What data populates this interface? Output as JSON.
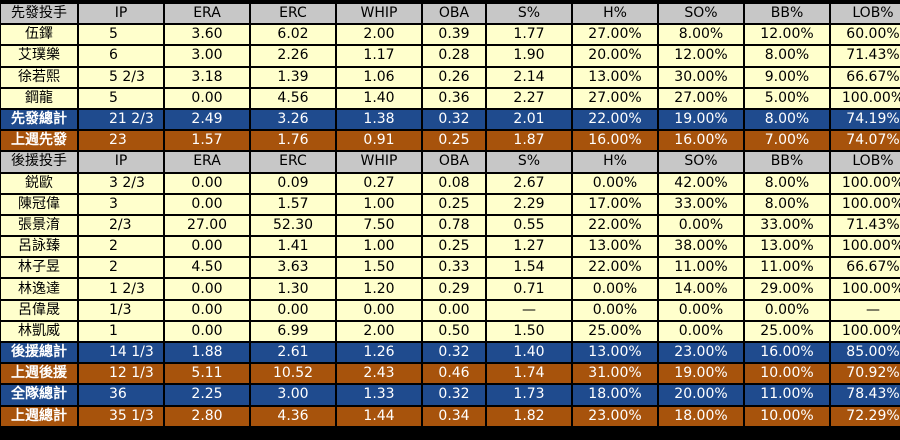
{
  "columns": [
    "IP",
    "ERA",
    "ERC",
    "WHIP",
    "OBA",
    "S%",
    "H%",
    "SO%",
    "BB%",
    "LOB%"
  ],
  "starters": {
    "header": "先發投手",
    "rows": [
      {
        "name": "伍鐸",
        "ip": "5",
        "era": "3.60",
        "erc": "6.02",
        "whip": "2.00",
        "oba": "0.39",
        "s": "1.77",
        "h": "27.00%",
        "so": "8.00%",
        "bb": "12.00%",
        "lob": "60.00%"
      },
      {
        "name": "艾璞樂",
        "ip": "6",
        "era": "3.00",
        "erc": "2.26",
        "whip": "1.17",
        "oba": "0.28",
        "s": "1.90",
        "h": "20.00%",
        "so": "12.00%",
        "bb": "8.00%",
        "lob": "71.43%"
      },
      {
        "name": "徐若熙",
        "ip": "5 2/3",
        "era": "3.18",
        "erc": "1.39",
        "whip": "1.06",
        "oba": "0.26",
        "s": "2.14",
        "h": "13.00%",
        "so": "30.00%",
        "bb": "9.00%",
        "lob": "66.67%"
      },
      {
        "name": "鋼龍",
        "ip": "5",
        "era": "0.00",
        "erc": "4.56",
        "whip": "1.40",
        "oba": "0.36",
        "s": "2.27",
        "h": "27.00%",
        "so": "27.00%",
        "bb": "5.00%",
        "lob": "100.00%"
      }
    ],
    "total": {
      "name": "先發總計",
      "ip": "21 2/3",
      "era": "2.49",
      "erc": "3.26",
      "whip": "1.38",
      "oba": "0.32",
      "s": "2.01",
      "h": "22.00%",
      "so": "19.00%",
      "bb": "8.00%",
      "lob": "74.19%"
    },
    "last_week": {
      "name": "上週先發",
      "ip": "23",
      "era": "1.57",
      "erc": "1.76",
      "whip": "0.91",
      "oba": "0.25",
      "s": "1.87",
      "h": "16.00%",
      "so": "16.00%",
      "bb": "7.00%",
      "lob": "74.07%"
    }
  },
  "relievers": {
    "header": "後援投手",
    "rows": [
      {
        "name": "鋭歐",
        "ip": "3 2/3",
        "era": "0.00",
        "erc": "0.09",
        "whip": "0.27",
        "oba": "0.08",
        "s": "2.67",
        "h": "0.00%",
        "so": "42.00%",
        "bb": "8.00%",
        "lob": "100.00%"
      },
      {
        "name": "陳冠偉",
        "ip": "3",
        "era": "0.00",
        "erc": "1.57",
        "whip": "1.00",
        "oba": "0.25",
        "s": "2.29",
        "h": "17.00%",
        "so": "33.00%",
        "bb": "8.00%",
        "lob": "100.00%"
      },
      {
        "name": "張景淯",
        "ip": "2/3",
        "era": "27.00",
        "erc": "52.30",
        "whip": "7.50",
        "oba": "0.78",
        "s": "0.55",
        "h": "22.00%",
        "so": "0.00%",
        "bb": "33.00%",
        "lob": "71.43%"
      },
      {
        "name": "呂詠臻",
        "ip": "2",
        "era": "0.00",
        "erc": "1.41",
        "whip": "1.00",
        "oba": "0.25",
        "s": "1.27",
        "h": "13.00%",
        "so": "38.00%",
        "bb": "13.00%",
        "lob": "100.00%"
      },
      {
        "name": "林子昱",
        "ip": "2",
        "era": "4.50",
        "erc": "3.63",
        "whip": "1.50",
        "oba": "0.33",
        "s": "1.54",
        "h": "22.00%",
        "so": "11.00%",
        "bb": "11.00%",
        "lob": "66.67%"
      },
      {
        "name": "林逸達",
        "ip": "1 2/3",
        "era": "0.00",
        "erc": "1.30",
        "whip": "1.20",
        "oba": "0.29",
        "s": "0.71",
        "h": "0.00%",
        "so": "14.00%",
        "bb": "29.00%",
        "lob": "100.00%"
      },
      {
        "name": "呂偉晟",
        "ip": "1/3",
        "era": "0.00",
        "erc": "0.00",
        "whip": "0.00",
        "oba": "0.00",
        "s": "—",
        "h": "0.00%",
        "so": "0.00%",
        "bb": "0.00%",
        "lob": "—"
      },
      {
        "name": "林凱威",
        "ip": "1",
        "era": "0.00",
        "erc": "6.99",
        "whip": "2.00",
        "oba": "0.50",
        "s": "1.50",
        "h": "25.00%",
        "so": "0.00%",
        "bb": "25.00%",
        "lob": "100.00%"
      }
    ],
    "total": {
      "name": "後援總計",
      "ip": "14 1/3",
      "era": "1.88",
      "erc": "2.61",
      "whip": "1.26",
      "oba": "0.32",
      "s": "1.40",
      "h": "13.00%",
      "so": "23.00%",
      "bb": "16.00%",
      "lob": "85.00%"
    },
    "last_week": {
      "name": "上週後援",
      "ip": "12 1/3",
      "era": "5.11",
      "erc": "10.52",
      "whip": "2.43",
      "oba": "0.46",
      "s": "1.74",
      "h": "31.00%",
      "so": "19.00%",
      "bb": "10.00%",
      "lob": "70.92%"
    }
  },
  "team_total": {
    "name": "全隊總計",
    "ip": "36",
    "era": "2.25",
    "erc": "3.00",
    "whip": "1.33",
    "oba": "0.32",
    "s": "1.73",
    "h": "18.00%",
    "so": "20.00%",
    "bb": "11.00%",
    "lob": "78.43%"
  },
  "team_last_week": {
    "name": "上週總計",
    "ip": "35 1/3",
    "era": "2.80",
    "erc": "4.36",
    "whip": "1.44",
    "oba": "0.34",
    "s": "1.82",
    "h": "23.00%",
    "so": "18.00%",
    "bb": "10.00%",
    "lob": "72.29%"
  },
  "colors": {
    "header_bg": "#c7c7c7",
    "row_bg": "#ffffcc",
    "total_blue": "#1f4b8e",
    "total_brown": "#a7530c"
  }
}
